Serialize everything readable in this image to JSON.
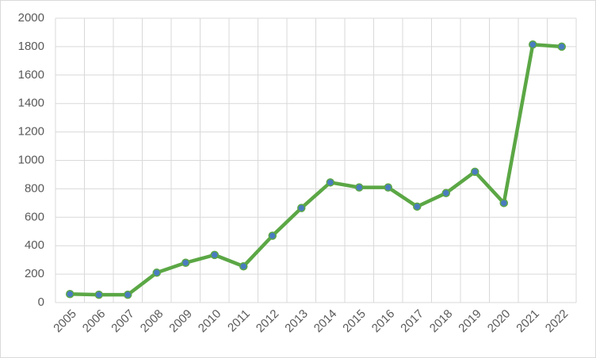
{
  "chart_data": {
    "type": "line",
    "categories": [
      "2005",
      "2006",
      "2007",
      "2008",
      "2009",
      "2010",
      "2011",
      "2012",
      "2013",
      "2014",
      "2015",
      "2016",
      "2017",
      "2018",
      "2019",
      "2020",
      "2021",
      "2022"
    ],
    "series": [
      {
        "color": "#5ba745",
        "marker_color": "#4a7cc0",
        "values": [
          60,
          55,
          55,
          210,
          280,
          335,
          255,
          470,
          665,
          845,
          810,
          810,
          675,
          770,
          920,
          700,
          1815,
          1800
        ]
      }
    ],
    "ylim": [
      0,
      2000
    ],
    "yticks": [
      0,
      200,
      400,
      600,
      800,
      1000,
      1200,
      1400,
      1600,
      1800,
      2000
    ],
    "grid": true
  }
}
